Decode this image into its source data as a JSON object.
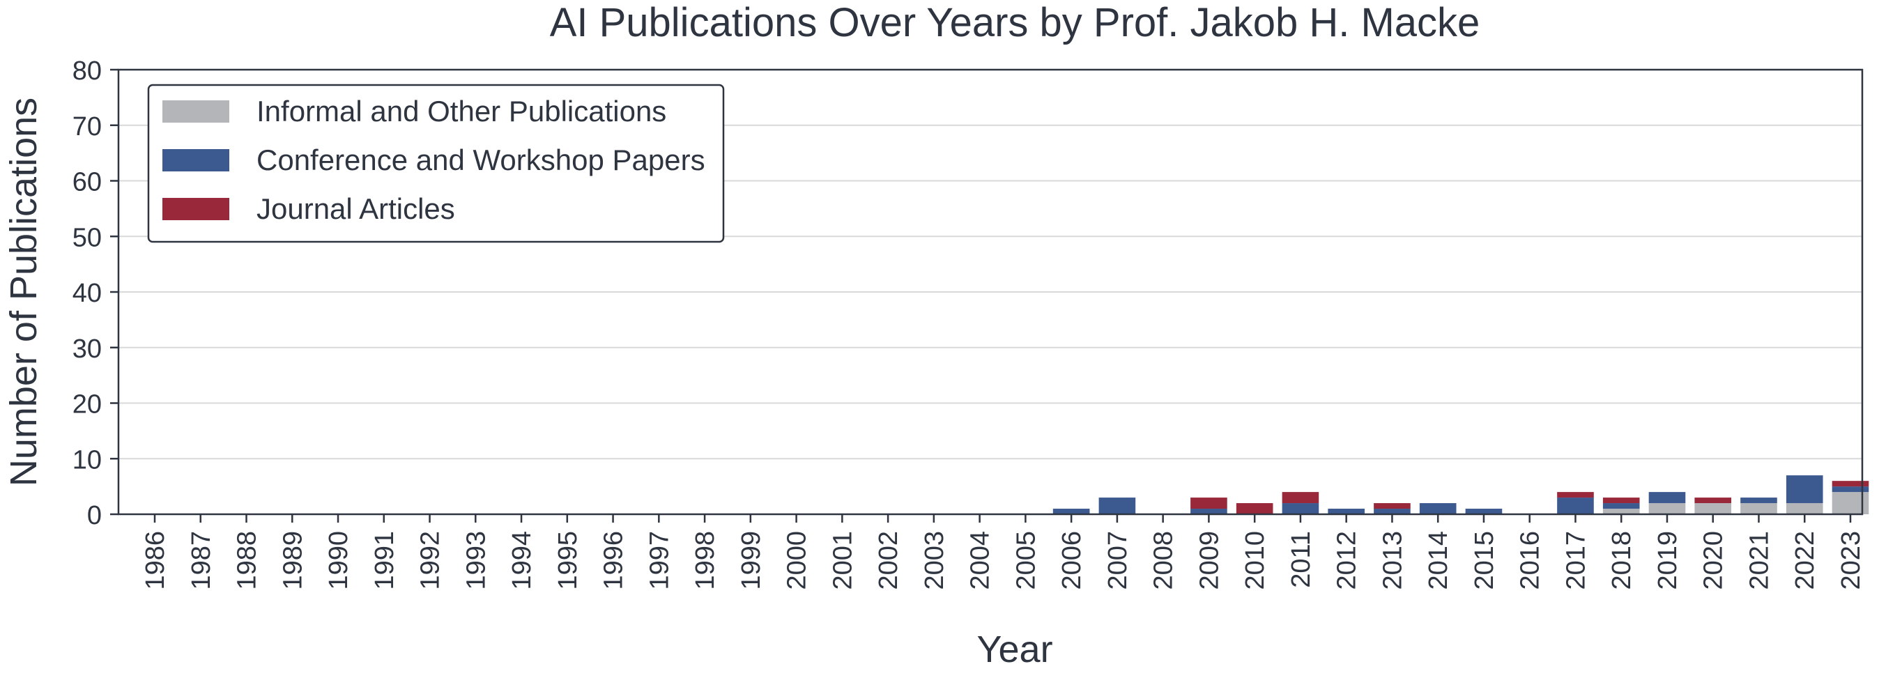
{
  "chart_data": {
    "type": "bar",
    "stacked": true,
    "title": "AI Publications Over Years by Prof. Jakob H. Macke",
    "xlabel": "Year",
    "ylabel": "Number of Publications",
    "ylim": [
      0,
      80
    ],
    "yticks": [
      0,
      10,
      20,
      30,
      40,
      50,
      60,
      70,
      80
    ],
    "grid": true,
    "legend_position": "top-left",
    "categories": [
      "1986",
      "1987",
      "1988",
      "1989",
      "1990",
      "1991",
      "1992",
      "1993",
      "1994",
      "1995",
      "1996",
      "1997",
      "1998",
      "1999",
      "2000",
      "2001",
      "2002",
      "2003",
      "2004",
      "2005",
      "2006",
      "2007",
      "2008",
      "2009",
      "2010",
      "2011",
      "2012",
      "2013",
      "2014",
      "2015",
      "2016",
      "2017",
      "2018",
      "2019",
      "2020",
      "2021",
      "2022",
      "2023"
    ],
    "series": [
      {
        "name": "Informal and Other Publications",
        "color": "#b3b5b8",
        "values": [
          0,
          0,
          0,
          0,
          0,
          0,
          0,
          0,
          0,
          0,
          0,
          0,
          0,
          0,
          0,
          0,
          0,
          0,
          0,
          0,
          0,
          0,
          0,
          0,
          0,
          0,
          0,
          0,
          0,
          0,
          0,
          0,
          1,
          2,
          2,
          2,
          2,
          4
        ]
      },
      {
        "name": "Conference and Workshop Papers",
        "color": "#3c5a8f",
        "values": [
          0,
          0,
          0,
          0,
          0,
          0,
          0,
          0,
          0,
          0,
          0,
          0,
          0,
          0,
          0,
          0,
          0,
          0,
          0,
          0,
          1,
          3,
          0,
          1,
          0,
          2,
          1,
          1,
          2,
          1,
          0,
          3,
          1,
          2,
          0,
          1,
          5,
          1
        ]
      },
      {
        "name": "Journal Articles",
        "color": "#98283a",
        "values": [
          0,
          0,
          0,
          0,
          0,
          0,
          0,
          0,
          0,
          0,
          0,
          0,
          0,
          0,
          0,
          0,
          0,
          0,
          0,
          0,
          0,
          0,
          0,
          2,
          2,
          2,
          0,
          1,
          0,
          0,
          0,
          1,
          1,
          0,
          1,
          0,
          0,
          1
        ]
      }
    ]
  }
}
